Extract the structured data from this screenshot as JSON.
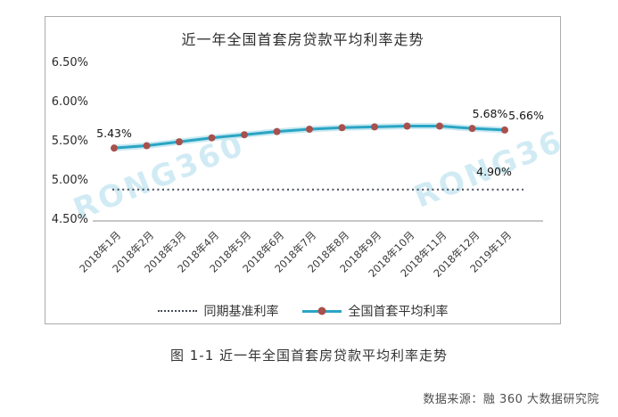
{
  "chart_data": {
    "type": "line",
    "title": "近一年全国首套房贷款平均利率走势",
    "x": [
      "2018年1月",
      "2018年2月",
      "2018年3月",
      "2018年4月",
      "2018年5月",
      "2018年6月",
      "2018年7月",
      "2018年8月",
      "2018年9月",
      "2018年10月",
      "2018年11月",
      "2018年12月",
      "2019年1月"
    ],
    "series": [
      {
        "name": "同期基准利率",
        "type": "constant-line",
        "style": "dotted",
        "value": 4.9
      },
      {
        "name": "全国首套平均利率",
        "type": "line-markers",
        "values": [
          5.43,
          5.46,
          5.51,
          5.56,
          5.6,
          5.64,
          5.67,
          5.69,
          5.7,
          5.71,
          5.71,
          5.68,
          5.66
        ]
      }
    ],
    "yticks": [
      "6.50%",
      "6.00%",
      "5.50%",
      "5.00%",
      "4.50%"
    ],
    "ylim": [
      4.5,
      6.5
    ],
    "grid": false,
    "legend_position": "bottom",
    "point_labels": [
      {
        "index": 0,
        "text": "5.43%",
        "dx": 0
      },
      {
        "index": 11,
        "text": "5.68%",
        "dx": 20
      },
      {
        "index": 12,
        "text": "5.66%",
        "dx": 24
      }
    ],
    "benchmark_label": "4.90%",
    "colors": {
      "line": "#2aa5c4",
      "line_halo": "#c9e9f2",
      "marker": "#a8504c",
      "benchmark": "#454b57",
      "axis": "#8f8f8f"
    }
  },
  "watermark": "RONG360",
  "caption": "图 1-1 近一年全国首套房贷款平均利率走势",
  "source": "数据来源：融 360 大数据研究院"
}
